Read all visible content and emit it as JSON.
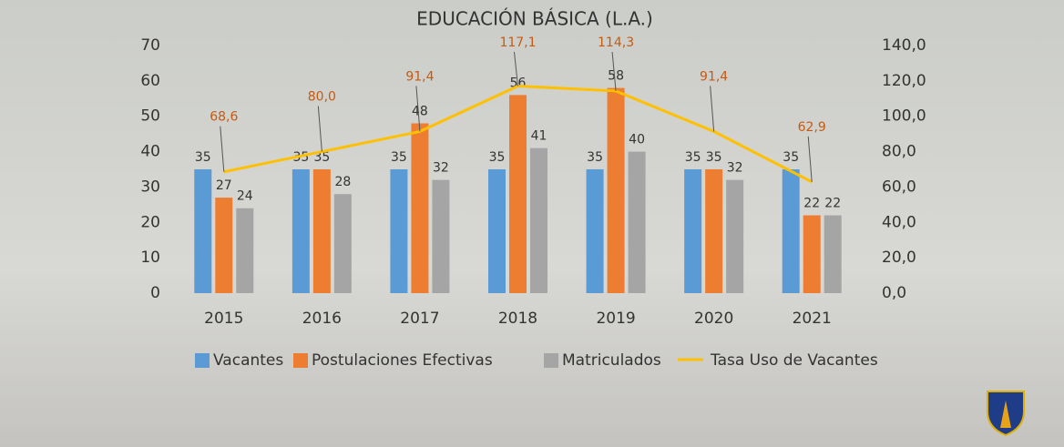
{
  "chart_data": {
    "type": "bar",
    "title": "EDUCACIÓN BÁSICA (L.A.)",
    "categories": [
      "2015",
      "2016",
      "2017",
      "2018",
      "2019",
      "2020",
      "2021"
    ],
    "series": [
      {
        "name": "Vacantes",
        "color": "#5b9bd5",
        "values": [
          35,
          35,
          35,
          35,
          35,
          35,
          35
        ]
      },
      {
        "name": "Postulaciones Efectivas",
        "color": "#ed7d31",
        "values": [
          27,
          35,
          48,
          56,
          58,
          35,
          22
        ]
      },
      {
        "name": "Matriculados",
        "color": "#a5a5a5",
        "values": [
          24,
          28,
          32,
          41,
          40,
          32,
          22
        ]
      },
      {
        "name": "Tasa Uso de Vacantes",
        "type": "line",
        "axis": "y2",
        "color": "#ffc000",
        "values": [
          68.6,
          80.0,
          91.4,
          117.1,
          114.3,
          91.4,
          62.9
        ],
        "value_labels": [
          "68,6",
          "80,0",
          "91,4",
          "117,1",
          "114,3",
          "91,4",
          "62,9"
        ]
      }
    ],
    "ylim": [
      0,
      70
    ],
    "yticks": [
      0,
      10,
      20,
      30,
      40,
      50,
      60,
      70
    ],
    "y2lim": [
      0,
      140
    ],
    "y2ticks": [
      {
        "value": 0,
        "label": "0,0"
      },
      {
        "value": 20,
        "label": "20,0"
      },
      {
        "value": 40,
        "label": "40,0"
      },
      {
        "value": 60,
        "label": "60,0"
      },
      {
        "value": 80,
        "label": "80,0"
      },
      {
        "value": 100,
        "label": "100,0"
      },
      {
        "value": 120,
        "label": "120,0"
      },
      {
        "value": 140,
        "label": "140,0"
      }
    ],
    "grid": false,
    "legend": "bottom"
  }
}
